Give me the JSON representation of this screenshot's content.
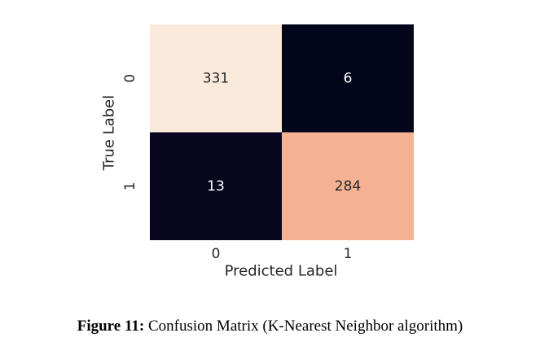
{
  "chart_data": {
    "type": "heatmap",
    "title": "",
    "xlabel": "Predicted Label",
    "ylabel": "True Label",
    "x_categories": [
      "0",
      "1"
    ],
    "y_categories": [
      "0",
      "1"
    ],
    "values": [
      [
        331,
        6
      ],
      [
        13,
        284
      ]
    ],
    "value_range": [
      6,
      331
    ],
    "colormap": "rocket",
    "colorbar": false,
    "grid": false,
    "cell_colors": {
      "high": "#faeadc",
      "mid_high": "#f4b08f",
      "low": "#03051a"
    },
    "annotation_colors": {
      "on_light": "#262626",
      "on_dark": "#ffffff"
    }
  },
  "caption": {
    "label": "Figure 11:",
    "text": " Confusion Matrix (K-Nearest Neighbor algorithm)"
  }
}
